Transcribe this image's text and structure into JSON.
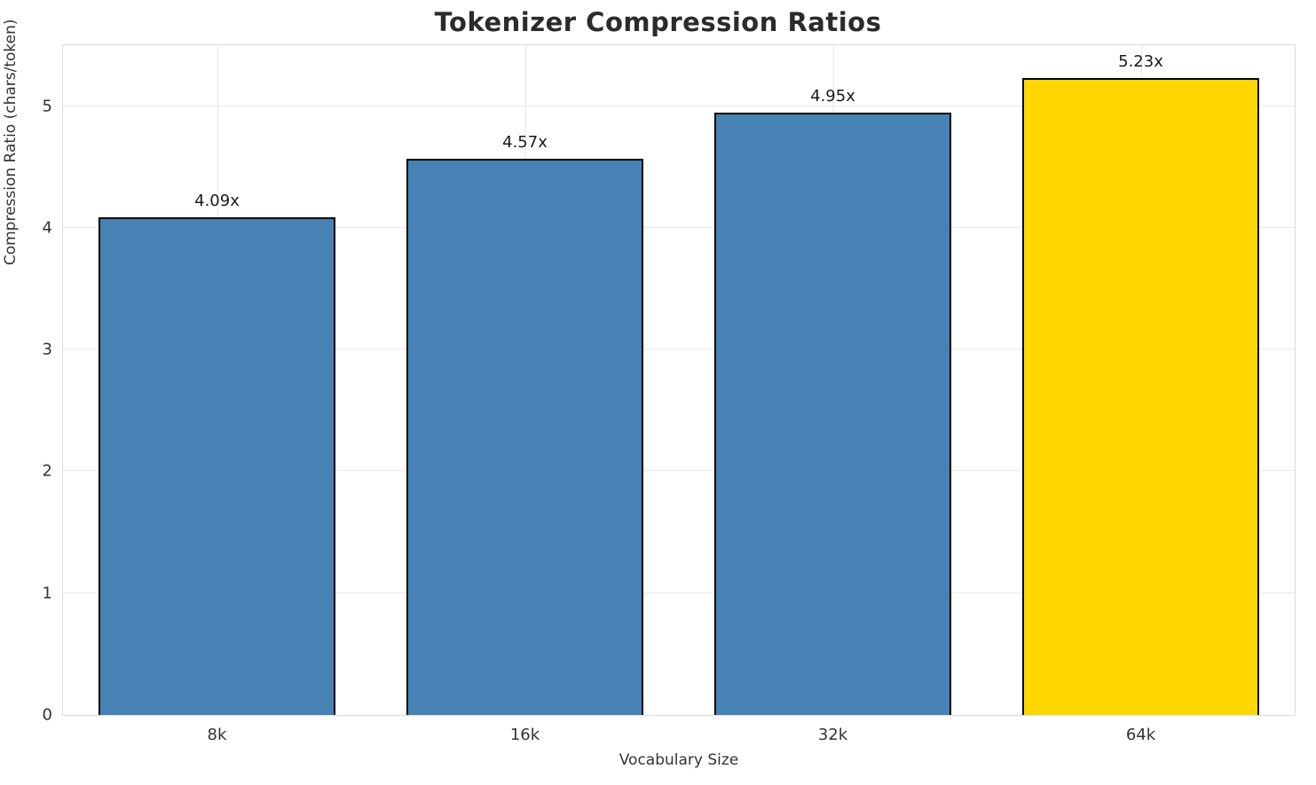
{
  "title": "Tokenizer Compression Ratios",
  "chart_data": {
    "type": "bar",
    "title": "Tokenizer Compression Ratios",
    "xlabel": "Vocabulary Size",
    "ylabel": "Compression Ratio (chars/token)",
    "categories": [
      "8k",
      "16k",
      "32k",
      "64k"
    ],
    "values": [
      4.09,
      4.57,
      4.95,
      5.23
    ],
    "value_labels": [
      "4.09x",
      "4.57x",
      "4.95x",
      "5.23x"
    ],
    "bar_colors": [
      "#4682b4",
      "#4682b4",
      "#4682b4",
      "#ffd700"
    ],
    "bar_edge_color": "#000000",
    "yticks": [
      0,
      1,
      2,
      3,
      4,
      5
    ],
    "ylim": [
      0,
      5.5
    ],
    "grid": true,
    "legend": "none",
    "highlight_category": "64k"
  }
}
